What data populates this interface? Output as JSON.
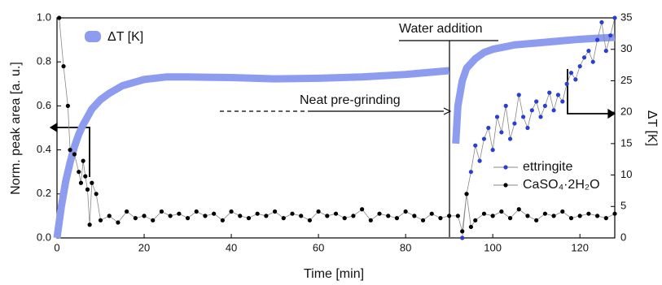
{
  "chart_data": {
    "type": "scatter",
    "xlabel": "Time [min]",
    "ylabel": "Norm. peak area [a. u.]",
    "y2label": "ΔT [K]",
    "xlim": [
      0,
      128
    ],
    "xticks": [
      0,
      20,
      40,
      60,
      80,
      100,
      120
    ],
    "ylim": [
      0,
      1
    ],
    "yticks": [
      {
        "value": 0,
        "label": "0.0"
      },
      0.2,
      0.4,
      0.6,
      0.8,
      {
        "value": 1,
        "label": "1.0"
      }
    ],
    "y2lim": [
      0,
      35
    ],
    "y2ticks": [
      0,
      5,
      10,
      15,
      20,
      25,
      30,
      35
    ],
    "annotations": [
      "Water addition",
      "Neat pre-grinding"
    ],
    "series": [
      {
        "name": "ΔT [K]",
        "color": "#8e9cf0",
        "axis": "y2",
        "style": "band",
        "x": [
          0,
          1,
          2,
          3,
          4,
          5,
          6,
          8,
          10,
          12,
          15,
          18,
          20,
          25,
          30,
          40,
          50,
          60,
          70,
          80,
          90,
          91,
          91.5,
          92,
          93,
          94,
          96,
          98,
          100,
          105,
          110,
          115,
          120,
          125,
          128
        ],
        "values": [
          0,
          5,
          9,
          12,
          14.5,
          16.5,
          18,
          20.5,
          22,
          23,
          24.2,
          24.8,
          25.2,
          25.6,
          25.6,
          25.5,
          25.3,
          25.4,
          25.6,
          26,
          26.6,
          null,
          15,
          21,
          25,
          27,
          28.5,
          29.5,
          30,
          30.7,
          31,
          31.3,
          31.6,
          31.8,
          31.9
        ]
      },
      {
        "name": "ettringite",
        "color": "#2a3ed0",
        "style": "dots",
        "x": [
          93,
          94,
          95,
          96,
          97,
          98,
          99,
          100,
          101,
          102,
          103,
          104,
          105,
          106,
          107,
          108,
          109,
          110,
          111,
          112,
          113,
          114,
          115,
          116,
          117,
          118,
          119,
          120,
          121,
          122,
          123,
          124,
          125,
          126,
          127,
          128
        ],
        "values": [
          0,
          0.2,
          0.3,
          0.42,
          0.35,
          0.45,
          0.5,
          0.4,
          0.55,
          0.48,
          0.6,
          0.45,
          0.52,
          0.65,
          0.55,
          0.5,
          0.58,
          0.62,
          0.55,
          0.6,
          0.66,
          0.58,
          0.65,
          0.62,
          0.7,
          0.75,
          0.72,
          0.78,
          0.82,
          0.85,
          0.8,
          0.9,
          0.98,
          0.85,
          0.92,
          1.0
        ]
      },
      {
        "name": "CaSO₄·2H₂O",
        "color": "#000000",
        "style": "dots",
        "x": [
          0.5,
          1.5,
          2.5,
          3,
          4,
          5,
          5.5,
          6,
          6.5,
          7,
          7.5,
          8,
          9,
          10,
          12,
          14,
          16,
          18,
          20,
          22,
          24,
          26,
          28,
          30,
          32,
          34,
          36,
          38,
          40,
          42,
          44,
          46,
          48,
          50,
          52,
          54,
          56,
          58,
          60,
          62,
          64,
          66,
          68,
          70,
          72,
          74,
          76,
          78,
          80,
          82,
          84,
          86,
          88,
          90,
          92,
          93,
          94,
          95,
          96,
          98,
          100,
          102,
          104,
          106,
          108,
          110,
          112,
          114,
          116,
          118,
          120,
          122,
          124,
          126,
          128
        ],
        "values": [
          1.0,
          0.78,
          0.6,
          0.4,
          0.38,
          0.3,
          0.25,
          0.35,
          0.28,
          0.22,
          0.06,
          0.25,
          0.2,
          0.08,
          0.1,
          0.07,
          0.12,
          0.09,
          0.1,
          0.08,
          0.12,
          0.1,
          0.11,
          0.09,
          0.12,
          0.1,
          0.11,
          0.08,
          0.12,
          0.1,
          0.09,
          0.11,
          0.1,
          0.12,
          0.09,
          0.11,
          0.1,
          0.08,
          0.12,
          0.1,
          0.11,
          0.09,
          0.1,
          0.13,
          0.08,
          0.11,
          0.1,
          0.09,
          0.12,
          0.1,
          0.08,
          0.11,
          0.09,
          0.1,
          0.1,
          0.03,
          0.2,
          0.05,
          0.08,
          0.11,
          0.1,
          0.12,
          0.09,
          0.13,
          0.1,
          0.08,
          0.11,
          0.1,
          0.12,
          0.09,
          0.1,
          0.11,
          0.1,
          0.09,
          0.11
        ]
      }
    ]
  }
}
